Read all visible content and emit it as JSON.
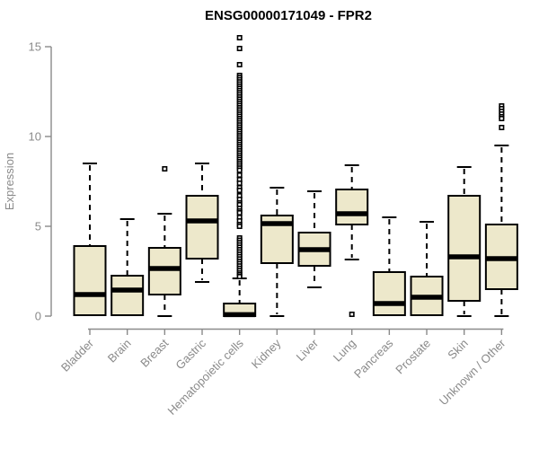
{
  "title": "ENSG00000171049 - FPR2",
  "colors": {
    "background": "#FFFFFF",
    "box_fill": "#EDE8CB",
    "box_stroke": "#000000",
    "median": "#000000",
    "whisker": "#000000",
    "outlier_fill": "#FFFFFF",
    "outlier_stroke": "#000000",
    "axis": "#8A8A8A",
    "title": "#000000"
  },
  "chart_data": {
    "type": "boxplot",
    "title": "ENSG00000171049 - FPR2",
    "xlabel": "",
    "ylabel": "Expression",
    "ylim": [
      0,
      15
    ],
    "yticks": [
      0,
      5,
      10,
      15
    ],
    "grid": false,
    "legend": false,
    "categories": [
      "Bladder",
      "Brain",
      "Breast",
      "Gastric",
      "Hematopoietic cells",
      "Kidney",
      "Liver",
      "Lung",
      "Pancreas",
      "Prostate",
      "Skin",
      "Unknown / Other"
    ],
    "boxes": [
      {
        "label": "Bladder",
        "low": 0.05,
        "q1": 0.05,
        "median": 1.2,
        "q3": 3.9,
        "high": 8.5,
        "outliers": []
      },
      {
        "label": "Brain",
        "low": 0.05,
        "q1": 0.05,
        "median": 1.45,
        "q3": 2.25,
        "high": 5.4,
        "outliers": []
      },
      {
        "label": "Breast",
        "low": 0.0,
        "q1": 1.2,
        "median": 2.65,
        "q3": 3.8,
        "high": 5.7,
        "outliers": [
          8.2
        ]
      },
      {
        "label": "Gastric",
        "low": 1.9,
        "q1": 3.2,
        "median": 5.3,
        "q3": 6.7,
        "high": 8.5,
        "outliers": []
      },
      {
        "label": "Hematopoietic cells",
        "low": 0.0,
        "q1": 0.0,
        "median": 0.08,
        "q3": 0.7,
        "high": 2.1,
        "outliers": [
          15.5,
          14.9,
          14.0,
          13.4,
          13.28,
          13.16,
          13.04,
          12.92,
          12.8,
          12.68,
          12.56,
          12.44,
          12.32,
          12.2,
          12.08,
          11.96,
          11.84,
          11.72,
          11.6,
          11.48,
          11.36,
          11.24,
          11.12,
          11.0,
          10.88,
          10.76,
          10.64,
          10.52,
          10.4,
          10.28,
          10.16,
          10.04,
          9.92,
          9.8,
          9.68,
          9.56,
          9.44,
          9.32,
          9.2,
          9.08,
          8.96,
          8.84,
          8.72,
          8.6,
          8.48,
          8.36,
          8.24,
          8.12,
          7.85,
          7.6,
          7.4,
          7.15,
          7.0,
          6.7,
          6.5,
          6.3,
          6.2,
          6.0,
          5.85,
          5.75,
          5.5,
          5.3,
          5.1,
          5.0,
          4.35,
          4.22,
          4.09,
          3.96,
          3.83,
          3.7,
          3.57,
          3.44,
          3.31,
          3.18,
          3.05,
          2.92,
          2.79,
          2.66,
          2.53,
          2.4,
          2.3,
          2.2
        ]
      },
      {
        "label": "Kidney",
        "low": 0.0,
        "q1": 2.95,
        "median": 5.15,
        "q3": 5.6,
        "high": 7.15,
        "outliers": []
      },
      {
        "label": "Liver",
        "low": 1.6,
        "q1": 2.8,
        "median": 3.7,
        "q3": 4.65,
        "high": 6.95,
        "outliers": []
      },
      {
        "label": "Lung",
        "low": 3.15,
        "q1": 5.1,
        "median": 5.7,
        "q3": 7.05,
        "high": 8.4,
        "outliers": [
          0.1
        ]
      },
      {
        "label": "Pancreas",
        "low": 0.05,
        "q1": 0.05,
        "median": 0.7,
        "q3": 2.45,
        "high": 5.5,
        "outliers": []
      },
      {
        "label": "Prostate",
        "low": 0.05,
        "q1": 0.05,
        "median": 1.05,
        "q3": 2.2,
        "high": 5.25,
        "outliers": []
      },
      {
        "label": "Skin",
        "low": 0.0,
        "q1": 0.85,
        "median": 3.3,
        "q3": 6.7,
        "high": 8.3,
        "outliers": []
      },
      {
        "label": "Unknown / Other",
        "low": 0.0,
        "q1": 1.5,
        "median": 3.2,
        "q3": 5.1,
        "high": 9.5,
        "outliers": [
          11.7,
          11.55,
          11.4,
          11.25,
          11.1,
          11.0,
          10.5
        ]
      }
    ]
  }
}
